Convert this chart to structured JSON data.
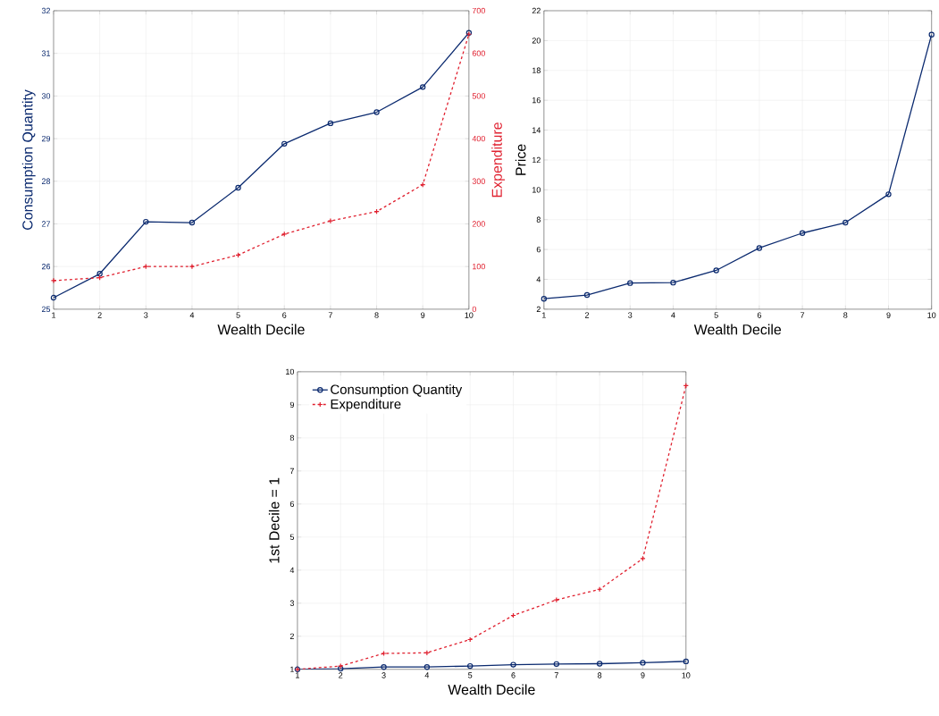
{
  "chart_data": [
    {
      "type": "line",
      "xlabel": "Wealth Decile",
      "ylabel": "Consumption Quantity",
      "y2label": "Expenditure",
      "x": [
        1,
        2,
        3,
        4,
        5,
        6,
        7,
        8,
        9,
        10
      ],
      "xlim": [
        1,
        10
      ],
      "xticks": [
        1,
        2,
        3,
        4,
        5,
        6,
        7,
        8,
        9,
        10
      ],
      "ylim": [
        25,
        32
      ],
      "yticks": [
        25,
        26,
        27,
        28,
        29,
        30,
        31,
        32
      ],
      "y2lim": [
        0,
        700
      ],
      "y2ticks": [
        0,
        100,
        200,
        300,
        400,
        500,
        600,
        700
      ],
      "grid": true,
      "series": [
        {
          "color": "#0b2a6f",
          "marker": "circle",
          "line_style": "solid",
          "values": [
            25.27,
            25.83,
            27.05,
            27.03,
            27.85,
            28.88,
            29.36,
            29.62,
            30.21,
            31.48
          ]
        },
        {
          "color": "#e0202f",
          "marker": "cross",
          "line_style": "dashed",
          "axis": "y2",
          "values": [
            67,
            74,
            100,
            100,
            127,
            176,
            207,
            229,
            292,
            645
          ]
        }
      ]
    },
    {
      "type": "line",
      "xlabel": "Wealth Decile",
      "ylabel": "Price",
      "x": [
        1,
        2,
        3,
        4,
        5,
        6,
        7,
        8,
        9,
        10
      ],
      "xlim": [
        1,
        10
      ],
      "xticks": [
        1,
        2,
        3,
        4,
        5,
        6,
        7,
        8,
        9,
        10
      ],
      "ylim": [
        2,
        22
      ],
      "yticks": [
        2,
        4,
        6,
        8,
        10,
        12,
        14,
        16,
        18,
        20,
        22
      ],
      "grid": true,
      "series": [
        {
          "color": "#0b2a6f",
          "marker": "circle",
          "line_style": "solid",
          "values": [
            2.7,
            2.95,
            3.75,
            3.78,
            4.6,
            6.1,
            7.1,
            7.8,
            9.7,
            20.4
          ]
        }
      ]
    },
    {
      "type": "line",
      "xlabel": "Wealth Decile",
      "ylabel": "1st Decile = 1",
      "x": [
        1,
        2,
        3,
        4,
        5,
        6,
        7,
        8,
        9,
        10
      ],
      "xlim": [
        1,
        10
      ],
      "xticks": [
        1,
        2,
        3,
        4,
        5,
        6,
        7,
        8,
        9,
        10
      ],
      "ylim": [
        1,
        10
      ],
      "yticks": [
        1,
        2,
        3,
        4,
        5,
        6,
        7,
        8,
        9,
        10
      ],
      "grid": true,
      "legend": "top left",
      "series": [
        {
          "name": "Consumption Quantity",
          "color": "#0b2a6f",
          "marker": "circle",
          "line_style": "solid",
          "values": [
            1,
            1.02,
            1.07,
            1.07,
            1.1,
            1.14,
            1.16,
            1.17,
            1.2,
            1.24
          ]
        },
        {
          "name": "Expenditure",
          "color": "#e0202f",
          "marker": "cross",
          "line_style": "dashed",
          "values": [
            1,
            1.1,
            1.48,
            1.5,
            1.9,
            2.63,
            3.1,
            3.42,
            4.35,
            9.58
          ]
        }
      ]
    }
  ]
}
